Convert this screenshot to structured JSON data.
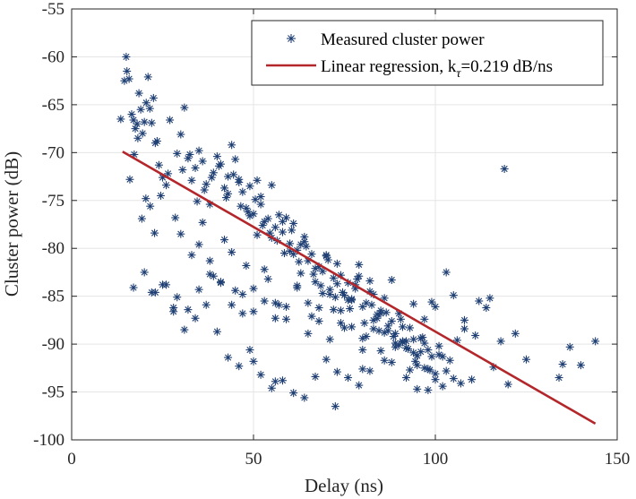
{
  "chart_data": {
    "type": "scatter",
    "xlabel": "Delay (ns)",
    "ylabel": "Cluster power (dB)",
    "xlim": [
      0,
      150
    ],
    "ylim": [
      -100,
      -55
    ],
    "xticks": [
      "0",
      "50",
      "100",
      "150"
    ],
    "yticks": [
      "-55",
      "-60",
      "-65",
      "-70",
      "-75",
      "-80",
      "-85",
      "-90",
      "-95",
      "-100"
    ],
    "grid": true,
    "legend_position": "top-right",
    "series": [
      {
        "name": "Measured cluster power",
        "marker": "asterisk",
        "color": "#1f3f73",
        "x": [
          13.5,
          14.5,
          15,
          15.2,
          15.8,
          16.5,
          17,
          17.5,
          18,
          18.5,
          19,
          19.5,
          20,
          20.5,
          21,
          21.5,
          22,
          22.5,
          23,
          16,
          17.2,
          18.2,
          19.3,
          20.4,
          21.6,
          22.8,
          23.5,
          24,
          25,
          26,
          27,
          28,
          29,
          30,
          31,
          32,
          33,
          34,
          35,
          36,
          37,
          38,
          39,
          40,
          41,
          42,
          43,
          44,
          45,
          46,
          47,
          48,
          49,
          50,
          51,
          52,
          53,
          54,
          55,
          56,
          57,
          58,
          59,
          60,
          61,
          62,
          63,
          64,
          65,
          66,
          67,
          68,
          69,
          70,
          71,
          72,
          73,
          74,
          75,
          76,
          77,
          78,
          79,
          80,
          81,
          82,
          83,
          84,
          85,
          86,
          87,
          88,
          89,
          90,
          91,
          92,
          93,
          94,
          95,
          96,
          97,
          98,
          99,
          100,
          101,
          102,
          103,
          104,
          105,
          106,
          107,
          108,
          110,
          112,
          114,
          116,
          118,
          120,
          122,
          125,
          134,
          135,
          137,
          140,
          144,
          24.5,
          26.5,
          28.5,
          30.5,
          32.5,
          34.5,
          36.5,
          38.5,
          40.5,
          42.5,
          44.5,
          46.5,
          48.5,
          50.5,
          52.5,
          54.5,
          56.5,
          58.5,
          60.5,
          62.5,
          64.5,
          66.5,
          68.5,
          70.5,
          72.5,
          74.5,
          76.5,
          78.5,
          80.5,
          82.5,
          84.5,
          86.5,
          88.5,
          90.5,
          92.5,
          94.5,
          96.5,
          98.5,
          35,
          38,
          41,
          44,
          47,
          50,
          53,
          56,
          59,
          62,
          65,
          68,
          71,
          74,
          77,
          80,
          83,
          86,
          89,
          92,
          95,
          98,
          101,
          30,
          33,
          36,
          39,
          42,
          45,
          48,
          51,
          54,
          57,
          60,
          63,
          66,
          69,
          72,
          75,
          78,
          81,
          84,
          87,
          90,
          93,
          96,
          99,
          102,
          105,
          108,
          111,
          115,
          119,
          43,
          46,
          49,
          52,
          55,
          58,
          61,
          64,
          67,
          70,
          73,
          76,
          79,
          82,
          85,
          88,
          91,
          94,
          97,
          100,
          103,
          22,
          25,
          28,
          31,
          34,
          37,
          40,
          43,
          46,
          49,
          52,
          55,
          58,
          61,
          64,
          67,
          70,
          73,
          76,
          79,
          82,
          85,
          88,
          91,
          94,
          97,
          100,
          17,
          20,
          23,
          26,
          29,
          32,
          35,
          38,
          41,
          44,
          47,
          50,
          53,
          56,
          59,
          62,
          65,
          68,
          71,
          74,
          77,
          80,
          83,
          86,
          89,
          92,
          95,
          98,
          72.5,
          50,
          56,
          80,
          95
        ],
        "y": [
          -66.5,
          -62.5,
          -60,
          -61.5,
          -62.3,
          -66,
          -66.6,
          -67.5,
          -67,
          -63.8,
          -65.5,
          -68,
          -66.8,
          -64.8,
          -62.1,
          -65.4,
          -66.9,
          -64.3,
          -69,
          -72.8,
          -70.2,
          -68.5,
          -76.9,
          -74.8,
          -75.6,
          -78.4,
          -68.8,
          -71.3,
          -72.6,
          -73.4,
          -66.6,
          -86.6,
          -70.1,
          -68.1,
          -65.3,
          -70.6,
          -72.9,
          -71.6,
          -69.8,
          -70.9,
          -73.3,
          -75.4,
          -72.1,
          -70.4,
          -71.2,
          -73.7,
          -72.5,
          -69.2,
          -70.7,
          -72.8,
          -74.1,
          -75.8,
          -73.5,
          -76.4,
          -72.9,
          -74.6,
          -77.2,
          -76.9,
          -73.4,
          -77.8,
          -76.5,
          -78.3,
          -76.8,
          -79.5,
          -77.4,
          -80.2,
          -79.6,
          -78.8,
          -81.3,
          -80.6,
          -83.5,
          -81.9,
          -82.4,
          -80.7,
          -84.3,
          -83.1,
          -81.6,
          -82.8,
          -84.9,
          -83.6,
          -85.4,
          -84.2,
          -82.9,
          -86.1,
          -85.7,
          -83.4,
          -84.8,
          -87.3,
          -86.5,
          -85.2,
          -88.1,
          -87.6,
          -88.9,
          -86.8,
          -89.7,
          -90.4,
          -88.3,
          -89.5,
          -91.2,
          -90.8,
          -89.9,
          -92.6,
          -91.3,
          -93.1,
          -90.2,
          -94.4,
          -92.8,
          -91.7,
          -93.6,
          -89.6,
          -94.1,
          -88.4,
          -93.7,
          -85.5,
          -86.2,
          -92.4,
          -89.7,
          -94.2,
          -88.9,
          -91.6,
          -93.5,
          -92.1,
          -90.3,
          -92.2,
          -89.7,
          -74.5,
          -72.2,
          -76.8,
          -71.8,
          -70.2,
          -75.1,
          -73.9,
          -72.6,
          -71.4,
          -74.7,
          -72.3,
          -75.6,
          -76.2,
          -74.9,
          -77.6,
          -78.4,
          -79.2,
          -80.5,
          -78.1,
          -81.4,
          -79.8,
          -82.7,
          -83.9,
          -81.2,
          -85.1,
          -84.6,
          -86.3,
          -83.2,
          -87.8,
          -85.9,
          -88.6,
          -86.7,
          -89.2,
          -87.4,
          -90.5,
          -91.8,
          -89.3,
          -92.7,
          -79.6,
          -81.3,
          -83.5,
          -80.4,
          -84.8,
          -86.6,
          -82.2,
          -85.7,
          -87.4,
          -84.1,
          -88.9,
          -86.2,
          -89.5,
          -87.8,
          -85.3,
          -90.6,
          -88.4,
          -91.7,
          -89.9,
          -93.5,
          -92.2,
          -94.8,
          -91.1,
          -78.5,
          -80.7,
          -77.3,
          -82.9,
          -79.1,
          -84.4,
          -81.8,
          -78.6,
          -83.2,
          -85.9,
          -80.3,
          -82.6,
          -87.1,
          -84.7,
          -86.4,
          -88.3,
          -83.8,
          -89.2,
          -86.9,
          -88.6,
          -90.1,
          -92.7,
          -89.4,
          -85.6,
          -91.3,
          -84.9,
          -87.5,
          -89.1,
          -85.2,
          -71.7,
          -74.3,
          -73.1,
          -76.6,
          -75.4,
          -78.9,
          -77.2,
          -80.6,
          -79.3,
          -82.1,
          -80.8,
          -83.7,
          -85.4,
          -81.7,
          -84.5,
          -86.8,
          -83.3,
          -88.2,
          -85.8,
          -87.4,
          -86.1,
          -82.5,
          -84.6,
          -83.8,
          -86.2,
          -88.5,
          -87.3,
          -85.9,
          -88.7,
          -91.4,
          -92.3,
          -90.6,
          -93.2,
          -94.6,
          -93.8,
          -95.1,
          -95.6,
          -93.4,
          -91.6,
          -92.9,
          -93.5,
          -94.3,
          -92.8,
          -90.7,
          -91.9,
          -89.8,
          -90.9,
          -92.5,
          -93.7,
          -84.1,
          -82.5,
          -84.6,
          -83.8,
          -85.1,
          -86.4,
          -84.3,
          -82.7,
          -83.6,
          -85.9,
          -86.8,
          -84.2,
          -85.5,
          -87.3,
          -86.1,
          -83.9,
          -85.7,
          -87.6,
          -84.8,
          -86.5,
          -88.2,
          -89.4,
          -87.5,
          -88.8,
          -90.3,
          -89.7,
          -91.2,
          -90.6,
          -96.5,
          -91.8,
          -93.9,
          -92.6,
          -94.7
        ]
      },
      {
        "name": "Linear regression, kτ=0.219 dB/ns",
        "type": "line",
        "color": "#b3272b",
        "x": [
          14,
          144
        ],
        "y": [
          -69.9,
          -98.3
        ]
      }
    ],
    "legend": {
      "entry1": "Measured cluster power",
      "entry2_main": "Linear regression, k",
      "entry2_sub": "τ",
      "entry2_tail": "=0.219 dB/ns"
    }
  },
  "colors": {
    "scatter": "#1f3f73",
    "regression": "#b3272b",
    "grid": "#e5e5e5",
    "axis": "#262626"
  }
}
